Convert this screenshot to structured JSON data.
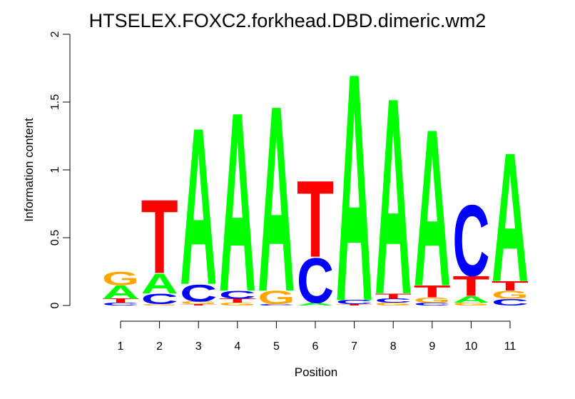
{
  "chart_data": {
    "type": "sequence-logo",
    "title": "HTSELEX.FOXC2.forkhead.DBD.dimeric.wm2",
    "xlabel": "Position",
    "ylabel": "Information content",
    "ylim": [
      0,
      2
    ],
    "yticks": [
      "0",
      "0.5",
      "1",
      "1.5",
      "2"
    ],
    "positions": [
      "1",
      "2",
      "3",
      "4",
      "5",
      "6",
      "7",
      "8",
      "9",
      "10",
      "11"
    ],
    "colors": {
      "A": "#00ff00",
      "C": "#0000ff",
      "G": "#ffa500",
      "T": "#ff0000"
    },
    "stacks": [
      [
        {
          "letter": "C",
          "height": 0.02
        },
        {
          "letter": "T",
          "height": 0.03
        },
        {
          "letter": "A",
          "height": 0.1
        },
        {
          "letter": "G",
          "height": 0.1
        }
      ],
      [
        {
          "letter": "G",
          "height": 0.01
        },
        {
          "letter": "C",
          "height": 0.08
        },
        {
          "letter": "A",
          "height": 0.15
        },
        {
          "letter": "T",
          "height": 0.56
        }
      ],
      [
        {
          "letter": "T",
          "height": 0.01
        },
        {
          "letter": "G",
          "height": 0.02
        },
        {
          "letter": "C",
          "height": 0.13
        },
        {
          "letter": "A",
          "height": 1.19
        }
      ],
      [
        {
          "letter": "G",
          "height": 0.02
        },
        {
          "letter": "T",
          "height": 0.03
        },
        {
          "letter": "C",
          "height": 0.06
        },
        {
          "letter": "A",
          "height": 1.36
        }
      ],
      [
        {
          "letter": "C",
          "height": 0.01
        },
        {
          "letter": "G",
          "height": 0.1
        },
        {
          "letter": "A",
          "height": 1.41
        }
      ],
      [
        {
          "letter": "A",
          "height": 0.02
        },
        {
          "letter": "C",
          "height": 0.34
        },
        {
          "letter": "T",
          "height": 0.58
        }
      ],
      [
        {
          "letter": "T",
          "height": 0.01
        },
        {
          "letter": "C",
          "height": 0.03
        },
        {
          "letter": "A",
          "height": 1.73
        }
      ],
      [
        {
          "letter": "G",
          "height": 0.02
        },
        {
          "letter": "C",
          "height": 0.03
        },
        {
          "letter": "T",
          "height": 0.04
        },
        {
          "letter": "A",
          "height": 1.49
        }
      ],
      [
        {
          "letter": "C",
          "height": 0.02
        },
        {
          "letter": "G",
          "height": 0.04
        },
        {
          "letter": "T",
          "height": 0.09
        },
        {
          "letter": "A",
          "height": 1.19
        }
      ],
      [
        {
          "letter": "G",
          "height": 0.02
        },
        {
          "letter": "A",
          "height": 0.05
        },
        {
          "letter": "T",
          "height": 0.15
        },
        {
          "letter": "C",
          "height": 0.54
        }
      ],
      [
        {
          "letter": "C",
          "height": 0.05
        },
        {
          "letter": "G",
          "height": 0.06
        },
        {
          "letter": "T",
          "height": 0.07
        },
        {
          "letter": "A",
          "height": 0.98
        }
      ]
    ]
  }
}
